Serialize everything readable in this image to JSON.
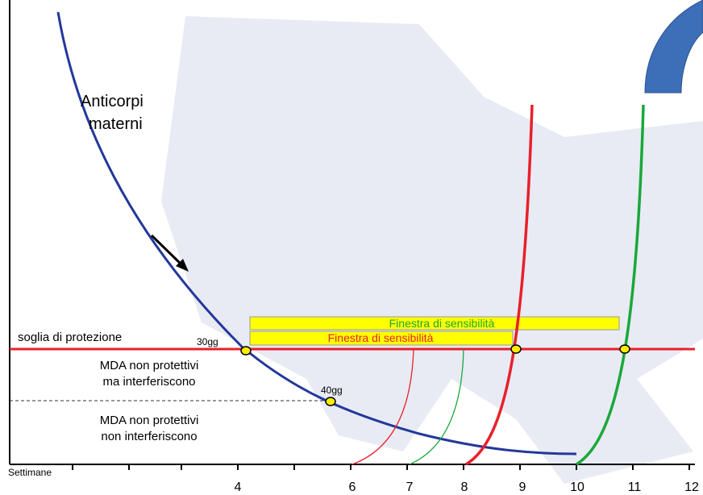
{
  "curve_label": [
    "Anticorpi",
    "materni"
  ],
  "threshold_label": "soglia di protezione",
  "zone_labels": [
    [
      "MDA non protettivi",
      "ma interferiscono"
    ],
    [
      "MDA non protettivi",
      "non interferiscono"
    ]
  ],
  "point_labels": [
    "30gg",
    "40gg"
  ],
  "windows": [
    {
      "label": "Finestra  di  sensibilità"
    },
    {
      "label": "Finestra  di  sensibilità"
    }
  ],
  "x_axis": {
    "title": "Settimane",
    "ticks": [
      4,
      6,
      7,
      8,
      9,
      10,
      11,
      12
    ]
  }
}
